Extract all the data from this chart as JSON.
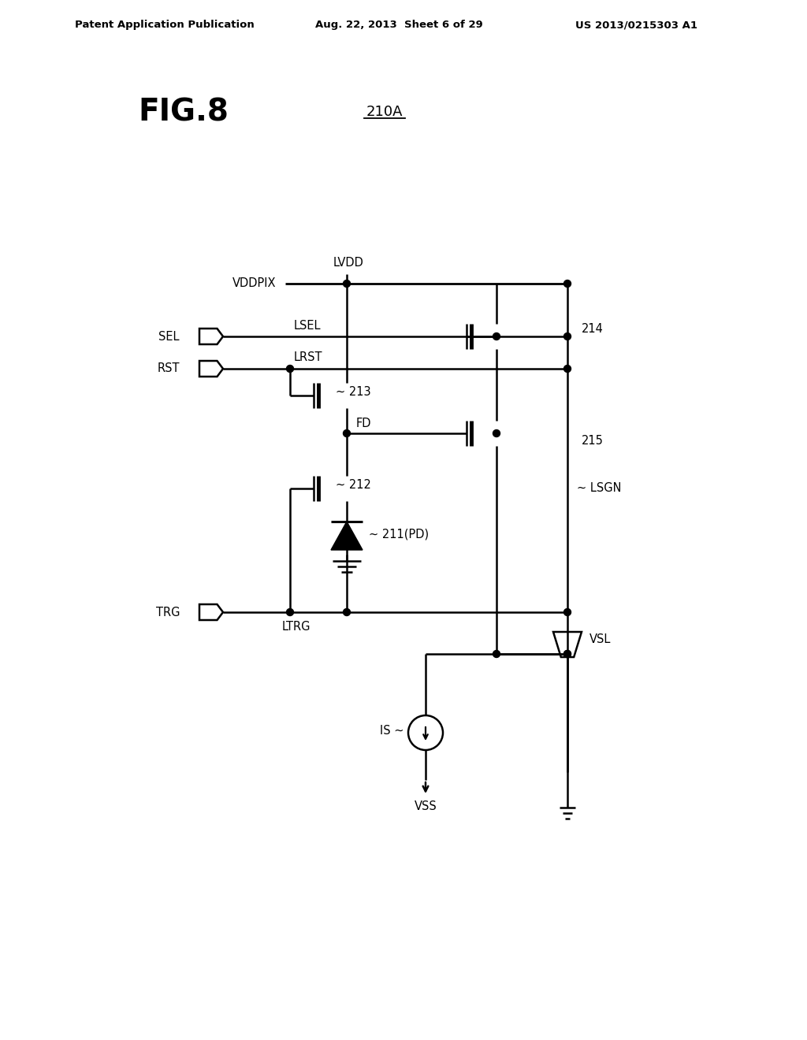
{
  "header_left": "Patent Application Publication",
  "header_mid": "Aug. 22, 2013  Sheet 6 of 29",
  "header_right": "US 2013/0215303 A1",
  "fig_label": "FIG.8",
  "ref_label": "210A",
  "bg_color": "#ffffff",
  "line_color": "#000000",
  "font_color": "#000000"
}
